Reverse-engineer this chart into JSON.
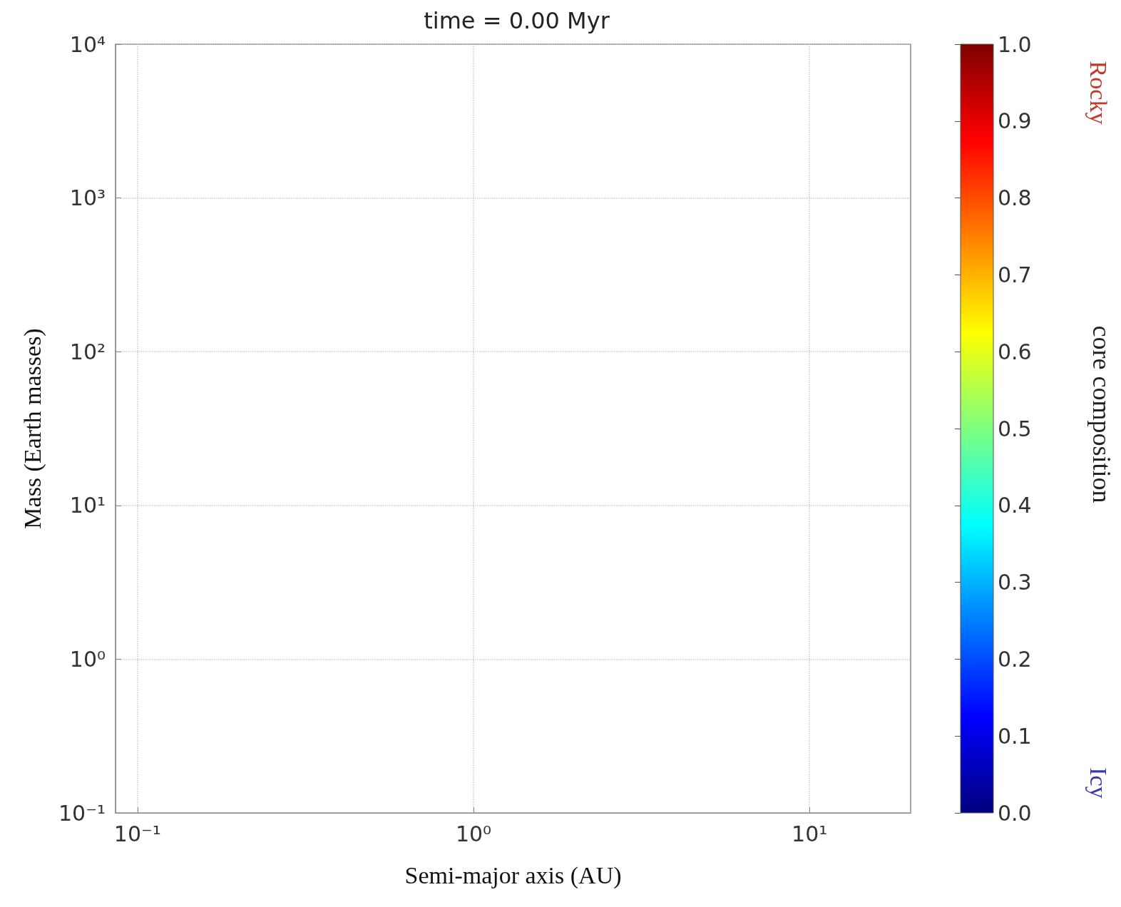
{
  "chart_data": {
    "type": "scatter",
    "title": "time = 0.00 Myr",
    "xlabel": "Semi-major axis (AU)",
    "ylabel": "Mass (Earth masses)",
    "clabel": "core composition",
    "annotations": [
      "Rocky",
      "Icy"
    ],
    "log": "xy",
    "grid": true,
    "xlim": [
      0.086,
      20
    ],
    "ylim": [
      0.1,
      10000
    ],
    "xticks": [
      {
        "value": 0.1,
        "label": "10⁻¹"
      },
      {
        "value": 1,
        "label": "10⁰"
      },
      {
        "value": 10,
        "label": "10¹"
      }
    ],
    "yticks": [
      {
        "value": 0.1,
        "label": "10⁻¹"
      },
      {
        "value": 1,
        "label": "10⁰"
      },
      {
        "value": 10,
        "label": "10¹"
      },
      {
        "value": 100,
        "label": "10²"
      },
      {
        "value": 1000,
        "label": "10³"
      },
      {
        "value": 10000,
        "label": "10⁴"
      }
    ],
    "clim": [
      0,
      1
    ],
    "cticks": [
      {
        "value": 0,
        "label": "0.0"
      },
      0.1,
      0.2,
      0.3,
      0.4,
      0.5,
      0.6,
      0.7,
      0.8,
      0.9,
      {
        "value": 1,
        "label": "1.0"
      }
    ]
  }
}
